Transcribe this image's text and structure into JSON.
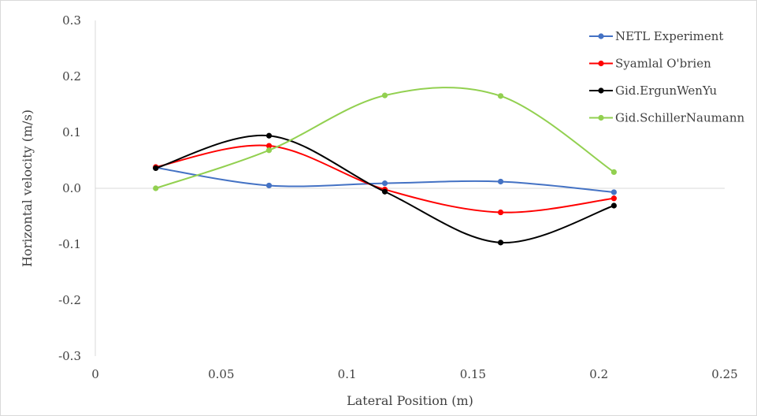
{
  "chart_data": {
    "type": "line",
    "title": "",
    "xlabel": "Lateral Position (m)",
    "ylabel": "Horizontal velocity (m/s)",
    "xlim": [
      0,
      0.25
    ],
    "ylim": [
      -0.3,
      0.3
    ],
    "x_ticks": [
      "0",
      "0.05",
      "0.1",
      "0.15",
      "0.2",
      "0.25"
    ],
    "y_ticks": [
      "0.3",
      "0.2",
      "0.1",
      "0.0",
      "-0.1",
      "-0.2",
      "-0.3"
    ],
    "smooth": true,
    "grid": false,
    "legend_position": "top-right",
    "x": [
      0.024,
      0.069,
      0.115,
      0.161,
      0.206
    ],
    "series": [
      {
        "name": "NETL Experiment",
        "color": "#4472c4",
        "values": [
          0.037,
          0.005,
          0.009,
          0.012,
          -0.007
        ]
      },
      {
        "name": "Syamlal O'brien",
        "color": "#ff0000",
        "values": [
          0.038,
          0.076,
          -0.002,
          -0.043,
          -0.018
        ]
      },
      {
        "name": "Gid.ErgunWenYu",
        "color": "#000000",
        "values": [
          0.036,
          0.094,
          -0.006,
          -0.097,
          -0.031
        ]
      },
      {
        "name": "Gid.SchillerNaumann",
        "color": "#92d050",
        "values": [
          0.0,
          0.068,
          0.166,
          0.165,
          0.029
        ]
      }
    ]
  }
}
